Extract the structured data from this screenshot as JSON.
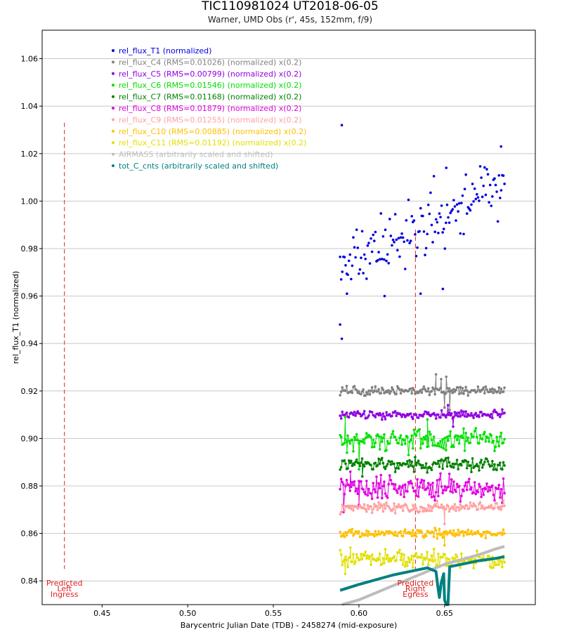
{
  "chart_data": {
    "type": "scatter",
    "title": "TIC110981024 UT2018-06-05",
    "subtitle": "Warner, UMD Obs (r', 45s, 152mm, f/9)",
    "xlabel": "Barycentric Julian Date (TDB) - 2458274 (mid-exposure)",
    "ylabel": "rel_flux_T1 (normalized)",
    "xlim": [
      0.415,
      0.703
    ],
    "ylim": [
      0.83,
      1.072
    ],
    "x_ticks": [
      0.45,
      0.5,
      0.55,
      0.6,
      0.65
    ],
    "x_tick_labels": [
      "0.45",
      "0.50",
      "0.55",
      "0.60",
      "0.65"
    ],
    "y_ticks": [
      0.84,
      0.86,
      0.88,
      0.9,
      0.92,
      0.94,
      0.96,
      0.98,
      1.0,
      1.02,
      1.04,
      1.06
    ],
    "y_tick_labels": [
      "0.84",
      "0.86",
      "0.88",
      "0.90",
      "0.92",
      "0.94",
      "0.96",
      "0.98",
      "1.00",
      "1.02",
      "1.04",
      "1.06"
    ],
    "grid": true,
    "legend_position": "top-left",
    "x_start": 0.589,
    "x_end": 0.685,
    "series": [
      {
        "name": "rel_flux_T1 (normalized)",
        "color": "#0000e0",
        "style": "points",
        "start": 0.972,
        "end": 1.007,
        "scatter": 0.012,
        "seed": 11,
        "points": [
          [
            0.589,
            0.948
          ],
          [
            0.59,
            1.032
          ],
          [
            0.59,
            0.942
          ],
          [
            0.593,
            0.961
          ],
          [
            0.615,
            0.96
          ],
          [
            0.636,
            0.961
          ],
          [
            0.649,
            0.963
          ],
          [
            0.651,
            1.014
          ],
          [
            0.683,
            1.023
          ]
        ]
      },
      {
        "name": "rel_flux_C4 (RMS=0.01026) (normalized) x(0.2)",
        "color": "#808080",
        "style": "line",
        "start": 0.92,
        "end": 0.92,
        "scatter": 0.0018,
        "seed": 21,
        "points": [
          [
            0.645,
            0.927
          ],
          [
            0.648,
            0.925
          ],
          [
            0.65,
            0.913
          ],
          [
            0.651,
            0.926
          ],
          [
            0.653,
            0.912
          ]
        ]
      },
      {
        "name": "rel_flux_C5 (RMS=0.00799) (normalized) x(0.2)",
        "color": "#9000e0",
        "style": "line",
        "start": 0.91,
        "end": 0.91,
        "scatter": 0.0016,
        "seed": 31,
        "points": [
          [
            0.655,
            0.905
          ],
          [
            0.652,
            0.914
          ]
        ]
      },
      {
        "name": "rel_flux_C6 (RMS=0.01546) (normalized) x(0.2)",
        "color": "#00e000",
        "style": "line",
        "start": 0.899,
        "end": 0.899,
        "scatter": 0.0045,
        "seed": 41,
        "points": [
          [
            0.592,
            0.909
          ],
          [
            0.593,
            0.894
          ],
          [
            0.6,
            0.887
          ],
          [
            0.64,
            0.908
          ]
        ]
      },
      {
        "name": "rel_flux_C7 (RMS=0.01168) (normalized) x(0.2)",
        "color": "#008000",
        "style": "line",
        "start": 0.889,
        "end": 0.889,
        "scatter": 0.0025,
        "seed": 51,
        "points": [
          [
            0.602,
            0.884
          ]
        ]
      },
      {
        "name": "rel_flux_C8 (RMS=0.01879) (normalized) x(0.2)",
        "color": "#e000e0",
        "style": "line",
        "start": 0.879,
        "end": 0.879,
        "scatter": 0.0045,
        "seed": 61,
        "points": [
          [
            0.591,
            0.869
          ],
          [
            0.595,
            0.886
          ],
          [
            0.6,
            0.872
          ]
        ]
      },
      {
        "name": "rel_flux_C9 (RMS=0.01255) (normalized) x(0.2)",
        "color": "#ffa0a0",
        "style": "line",
        "start": 0.871,
        "end": 0.871,
        "scatter": 0.002,
        "seed": 71,
        "points": [
          [
            0.65,
            0.864
          ]
        ]
      },
      {
        "name": "rel_flux_C10 (RMS=0.00885) (normalized) x(0.2)",
        "color": "#ffc000",
        "style": "line",
        "start": 0.86,
        "end": 0.86,
        "scatter": 0.0017,
        "seed": 81,
        "points": [
          [
            0.65,
            0.855
          ]
        ]
      },
      {
        "name": "rel_flux_C11 (RMS=0.01192) (normalized) x(0.2)",
        "color": "#e0e000",
        "style": "line",
        "start": 0.849,
        "end": 0.849,
        "scatter": 0.0035,
        "seed": 91,
        "points": [
          [
            0.592,
            0.843
          ],
          [
            0.595,
            0.854
          ]
        ]
      },
      {
        "name": "AIRMASS (arbitrarily scaled and shifted)",
        "color": "#bdbdbd",
        "style": "curve",
        "points": [
          [
            0.59,
            0.829
          ],
          [
            0.6,
            0.832
          ],
          [
            0.61,
            0.835
          ],
          [
            0.62,
            0.838
          ],
          [
            0.63,
            0.841
          ],
          [
            0.64,
            0.844
          ],
          [
            0.65,
            0.847
          ],
          [
            0.66,
            0.849
          ],
          [
            0.67,
            0.851
          ],
          [
            0.68,
            0.8535
          ],
          [
            0.685,
            0.8545
          ]
        ]
      },
      {
        "name": "tot_C_cnts (arbitrarily scaled and shifted)",
        "color": "#008080",
        "style": "curve",
        "points": [
          [
            0.589,
            0.836
          ],
          [
            0.6,
            0.8385
          ],
          [
            0.61,
            0.8405
          ],
          [
            0.62,
            0.8425
          ],
          [
            0.63,
            0.844
          ],
          [
            0.64,
            0.8455
          ],
          [
            0.645,
            0.844
          ],
          [
            0.646,
            0.838
          ],
          [
            0.647,
            0.833
          ],
          [
            0.648,
            0.839
          ],
          [
            0.6495,
            0.843
          ],
          [
            0.65,
            0.832
          ],
          [
            0.651,
            0.829
          ],
          [
            0.652,
            0.829
          ],
          [
            0.653,
            0.846
          ],
          [
            0.66,
            0.847
          ],
          [
            0.67,
            0.8485
          ],
          [
            0.68,
            0.8495
          ],
          [
            0.685,
            0.8502
          ]
        ]
      }
    ],
    "annotations": [
      {
        "x": 0.428,
        "lines": [
          "Predicted",
          "Left",
          "Ingress"
        ],
        "colors": [
          "#e02020",
          "#a0a0a0",
          "#e02020"
        ],
        "line_from": 0.845,
        "line_to": 1.033
      },
      {
        "x": 0.633,
        "lines": [
          "Predicted",
          "Right",
          "Egress"
        ],
        "colors": [
          "#e02020",
          "#a0a0a0",
          "#e02020"
        ],
        "line_from": 0.845,
        "line_to": 0.988
      }
    ]
  }
}
